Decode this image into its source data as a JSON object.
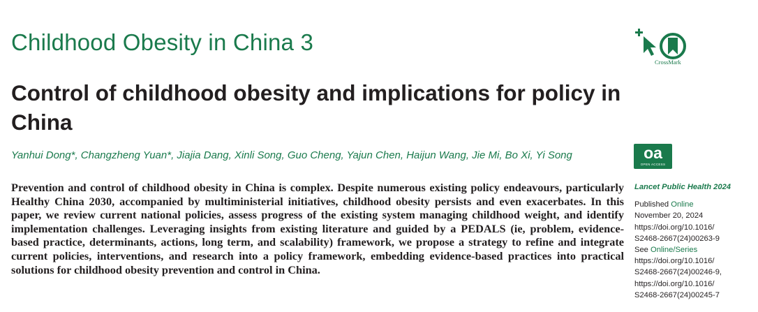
{
  "series_title": "Childhood Obesity in China 3",
  "title": "Control of childhood obesity and implications for policy in China",
  "authors": "Yanhui Dong*, Changzheng Yuan*, Jiajia Dang, Xinli Song, Guo Cheng, Yajun Chen, Haijun Wang, Jie Mi, Bo Xi, Yi Song",
  "abstract": "Prevention and control of childhood obesity in China is complex. Despite numerous existing policy endeavours, particularly Healthy China 2030, accompanied by multiministerial initiatives, childhood obesity persists and even exacerbates. In this paper, we review current national policies, assess progress of the existing system managing childhood weight, and identify implementation challenges. Leveraging insights from existing literature and guided by a PEDALS (ie, problem, evidence-based practice, determinants, actions, long term, and scalability) framework, we propose a strategy to refine and integrate current policies, interventions, and research into a policy framework, embedding evidence-based practices into practical solutions for childhood obesity prevention and control in China.",
  "crossmark": {
    "label": "CrossMark",
    "icon": "crossmark-icon"
  },
  "open_access": {
    "logo_text": "oa",
    "sub_text": "OPEN ACCESS",
    "icon": "open-access-icon"
  },
  "sidebar": {
    "journal": "Lancet Public Health 2024",
    "published_label": "Published",
    "published_online": "Online",
    "published_date": "November 20, 2024",
    "doi_1a": "https://doi.org/10.1016/",
    "doi_1b": "S2468-2667(24)00263-9",
    "see_label": "See",
    "see_link": "Online/Series",
    "doi_2a": "https://doi.org/10.1016/",
    "doi_2b": "S2468-2667(24)00246-9,",
    "doi_3a": "https://doi.org/10.1016/",
    "doi_3b": "S2468-2667(24)00245-7"
  },
  "colors": {
    "accent_green": "#1a7a4c",
    "text": "#231f20"
  }
}
